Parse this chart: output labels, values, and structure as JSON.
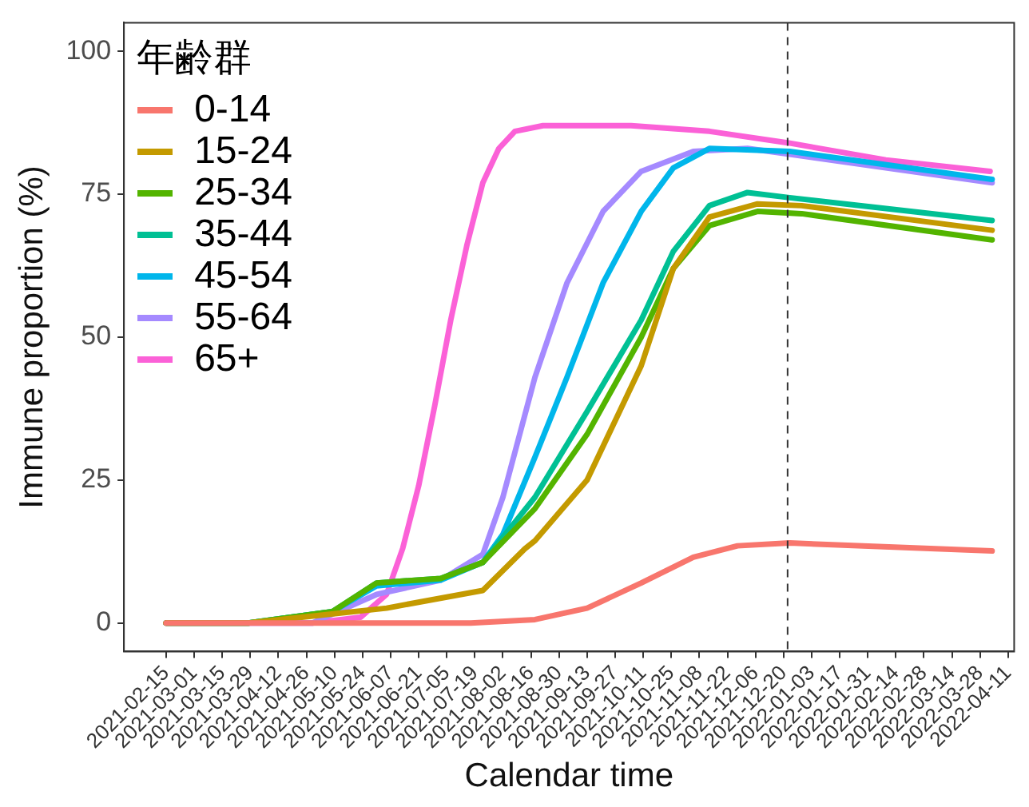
{
  "chart_data": {
    "type": "line",
    "xlabel": "Calendar time",
    "ylabel": "Immune proportion (%)",
    "legend_title": "年齢群",
    "legend": "top left",
    "grid": false,
    "marker": "none",
    "line_style": "solid",
    "xlim": [
      "2021-01-25",
      "2022-04-14"
    ],
    "xticks": [
      "2021-02-15",
      "2021-03-01",
      "2021-03-15",
      "2021-03-29",
      "2021-04-12",
      "2021-04-26",
      "2021-05-10",
      "2021-05-24",
      "2021-06-07",
      "2021-06-21",
      "2021-07-05",
      "2021-07-19",
      "2021-08-02",
      "2021-08-16",
      "2021-08-30",
      "2021-09-13",
      "2021-09-27",
      "2021-10-11",
      "2021-10-25",
      "2021-11-08",
      "2021-11-22",
      "2021-12-06",
      "2021-12-20",
      "2022-01-03",
      "2022-01-17",
      "2022-01-31",
      "2022-02-14",
      "2022-02-28",
      "2022-03-14",
      "2022-03-28",
      "2022-04-11"
    ],
    "ylim": [
      -5,
      105
    ],
    "yticks": [
      0,
      25,
      50,
      75,
      100
    ],
    "ref_lines": [
      {
        "axis": "x",
        "value": "2021-12-22",
        "color": "#333333",
        "line_style": "dashed"
      }
    ],
    "series": [
      {
        "name": "0-14",
        "color": "#f8766d",
        "x": [
          "2021-02-15",
          "2021-07-17",
          "2021-08-18",
          "2021-09-13",
          "2021-10-10",
          "2021-11-05",
          "2021-11-27",
          "2021-12-23",
          "2022-04-03"
        ],
        "values": [
          0,
          0,
          0.6,
          2.6,
          7,
          11.5,
          13.5,
          14,
          12.6
        ]
      },
      {
        "name": "15-24",
        "color": "#c49a00",
        "x": [
          "2021-02-15",
          "2021-03-28",
          "2021-06-05",
          "2021-07-23",
          "2021-08-13",
          "2021-08-18",
          "2021-09-13",
          "2021-10-10",
          "2021-10-26",
          "2021-11-13",
          "2021-12-07",
          "2021-12-29",
          "2022-04-03"
        ],
        "values": [
          0,
          0,
          2.6,
          5.7,
          13,
          14.4,
          25,
          45,
          62,
          71,
          73.3,
          73,
          68.7
        ]
      },
      {
        "name": "25-34",
        "color": "#53b400",
        "x": [
          "2021-02-15",
          "2021-03-28",
          "2021-05-09",
          "2021-05-31",
          "2021-07-02",
          "2021-07-23",
          "2021-08-18",
          "2021-09-13",
          "2021-10-10",
          "2021-10-26",
          "2021-11-13",
          "2021-12-07",
          "2021-12-29",
          "2022-04-03"
        ],
        "values": [
          0,
          0,
          2,
          7,
          7.8,
          10.6,
          20,
          33,
          50,
          62,
          69.5,
          72,
          71.6,
          67
        ]
      },
      {
        "name": "35-44",
        "color": "#00c094",
        "x": [
          "2021-02-15",
          "2021-03-28",
          "2021-05-09",
          "2021-05-31",
          "2021-07-02",
          "2021-07-23",
          "2021-08-18",
          "2021-09-13",
          "2021-10-10",
          "2021-10-26",
          "2021-11-13",
          "2021-12-02",
          "2021-12-23",
          "2022-04-03"
        ],
        "values": [
          0,
          0,
          2,
          7,
          7.8,
          10.6,
          22,
          37,
          53,
          65,
          73,
          75.3,
          74.4,
          70.4
        ]
      },
      {
        "name": "45-54",
        "color": "#00b6eb",
        "x": [
          "2021-02-15",
          "2021-03-28",
          "2021-05-09",
          "2021-05-31",
          "2021-07-02",
          "2021-07-23",
          "2021-08-02",
          "2021-08-18",
          "2021-09-03",
          "2021-09-21",
          "2021-10-10",
          "2021-10-26",
          "2021-11-13",
          "2021-12-23",
          "2022-04-03"
        ],
        "values": [
          0,
          0,
          2,
          6.5,
          7.5,
          10.6,
          15.5,
          29,
          43,
          59.5,
          72,
          79.6,
          83,
          82.5,
          77.6
        ]
      },
      {
        "name": "55-64",
        "color": "#a58aff",
        "x": [
          "2021-02-15",
          "2021-04-29",
          "2021-05-31",
          "2021-07-02",
          "2021-07-23",
          "2021-08-02",
          "2021-08-18",
          "2021-09-03",
          "2021-09-21",
          "2021-10-10",
          "2021-11-05",
          "2021-12-02",
          "2021-12-23",
          "2022-04-03"
        ],
        "values": [
          0,
          0,
          5,
          7.5,
          12,
          22,
          43,
          59.5,
          72,
          79,
          82.5,
          83,
          82,
          77
        ]
      },
      {
        "name": "65+",
        "color": "#fb61d7",
        "x": [
          "2021-02-15",
          "2021-04-29",
          "2021-05-23",
          "2021-06-05",
          "2021-06-13",
          "2021-06-21",
          "2021-06-29",
          "2021-07-07",
          "2021-07-15",
          "2021-07-23",
          "2021-07-31",
          "2021-08-08",
          "2021-08-22",
          "2021-10-05",
          "2021-11-13",
          "2021-12-22",
          "2022-02-09",
          "2022-04-02"
        ],
        "values": [
          0,
          0,
          1,
          5,
          13,
          24,
          38,
          53,
          66,
          77,
          83,
          86,
          87,
          87,
          86,
          84,
          81,
          79
        ]
      }
    ]
  }
}
